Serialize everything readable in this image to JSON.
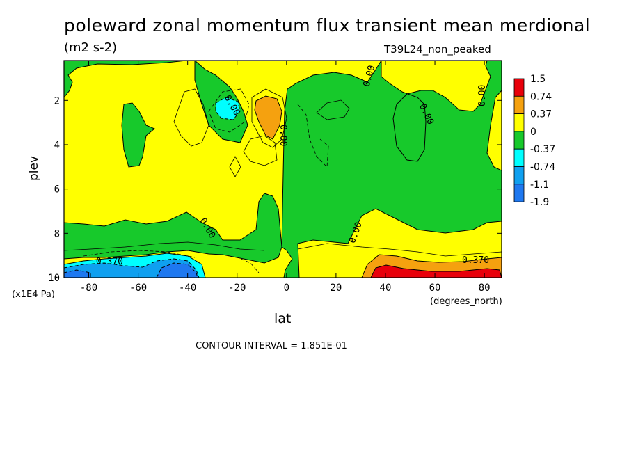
{
  "chart_data": {
    "type": "heatmap",
    "title": "poleward zonal momentum flux transient mean merdional",
    "units": "(m2 s-2)",
    "run_name": "T39L24_non_peaked",
    "xlabel": "lat",
    "x_unit_note": "(degrees_north)",
    "ylabel": "plev",
    "y_unit_note": "(x1E4 Pa)",
    "xlim": [
      -90,
      87
    ],
    "ylim": [
      10,
      0.2
    ],
    "x_ticks": [
      "-80",
      "-60",
      "-40",
      "-20",
      "0",
      "20",
      "40",
      "60",
      "80"
    ],
    "y_ticks": [
      "2",
      "4",
      "6",
      "8",
      "10"
    ],
    "contour_interval_text": "CONTOUR INTERVAL = 1.851E-01",
    "colorbar": {
      "levels": [
        "1.5",
        "0.74",
        "0.37",
        "0",
        "-0.37",
        "-0.74",
        "-1.1",
        "-1.9"
      ],
      "colors": [
        "#e8000b",
        "#f5a10f",
        "#ffff00",
        "#17c92b",
        "#00ffff",
        "#0fa0f0",
        "#1e78f0"
      ]
    },
    "contour_labels": [
      "0.00",
      "0.00",
      "0.00",
      "0.00",
      "0.00",
      "0.00",
      "0.00",
      "-0.370",
      "0.370"
    ],
    "regions": [
      {
        "value_range": "0 to 0.37",
        "color": "#ffff00",
        "area": "background, most of SH mid levels and NH upper levels"
      },
      {
        "value_range": "-0.37 to 0",
        "color": "#17c92b",
        "area": "NH mid levels, SH lower levels, narrow tropical upper band"
      },
      {
        "value_range": "0.37 to 0.74",
        "color": "#f5a10f",
        "area": "near -5 lat at 2.6 plev, NH surface 35-87"
      },
      {
        "value_range": "0.74 to 1.5",
        "color": "#e8000b",
        "area": "NH surface 35-85"
      },
      {
        "value_range": "-0.74 to -0.37",
        "color": "#00ffff",
        "area": "SH surface -90 to -30, near -25 lat 2.5 plev"
      },
      {
        "value_range": "-1.1 to -0.74",
        "color": "#0fa0f0",
        "area": "SH surface -90 to -35"
      },
      {
        "value_range": "-1.9 to -1.1",
        "color": "#1e78f0",
        "area": "SH surface near -45"
      }
    ]
  }
}
